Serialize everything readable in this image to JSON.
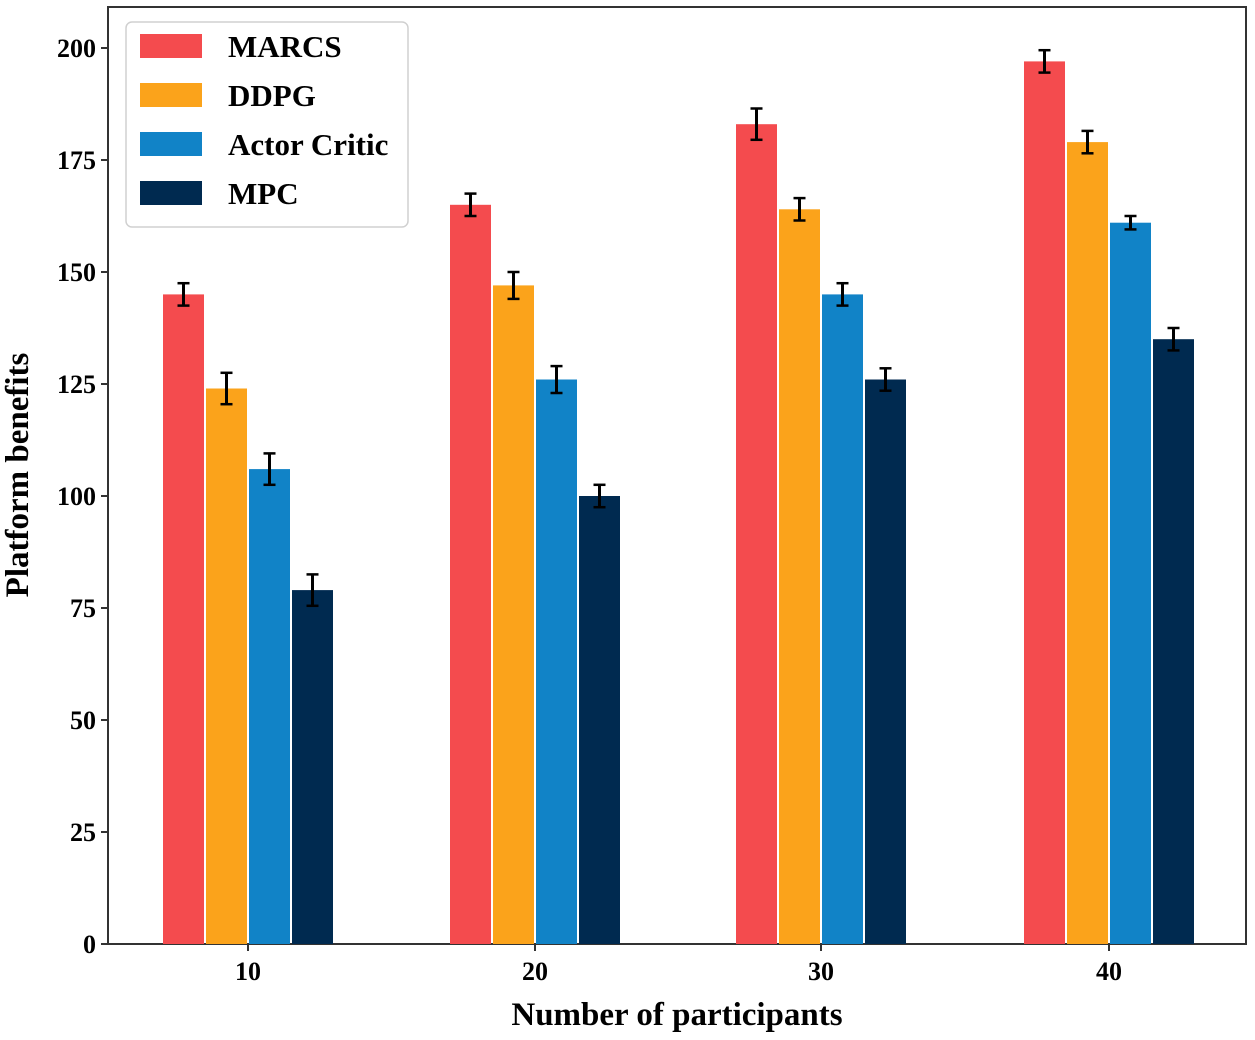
{
  "chart_data": {
    "type": "bar",
    "title": "",
    "xlabel": "Number of participants",
    "ylabel": "Platform benefits",
    "categories": [
      "10",
      "20",
      "30",
      "40"
    ],
    "ylim": [
      0,
      207
    ],
    "yticks": [
      0,
      25,
      50,
      75,
      100,
      125,
      150,
      175,
      200
    ],
    "grid": false,
    "legend_position": "top-left",
    "error_bars": true,
    "series": [
      {
        "name": "MARCS",
        "color": "#f44b4e",
        "values": [
          145,
          165,
          183,
          197
        ],
        "errors": [
          2.5,
          2.5,
          3.5,
          2.5
        ]
      },
      {
        "name": "DDPG",
        "color": "#fba31b",
        "values": [
          124,
          147,
          164,
          179
        ],
        "errors": [
          3.5,
          3,
          2.5,
          2.5
        ]
      },
      {
        "name": "Actor Critic",
        "color": "#1183c7",
        "values": [
          106,
          126,
          145,
          161
        ],
        "errors": [
          3.5,
          3,
          2.5,
          1.5
        ]
      },
      {
        "name": "MPC",
        "color": "#002a50",
        "values": [
          79,
          100,
          126,
          135
        ],
        "errors": [
          3.5,
          2.5,
          2.5,
          2.5
        ]
      }
    ]
  }
}
